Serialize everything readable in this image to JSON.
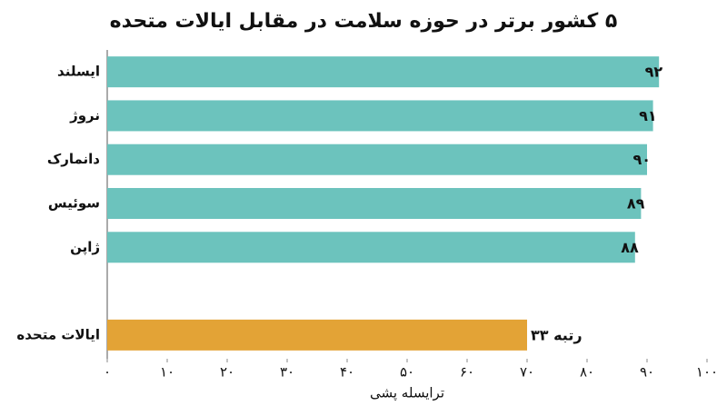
{
  "chart_data": {
    "type": "barh",
    "title": "۵ کشور برتر در حوزه سلامت در مقابل ایالات متحده",
    "x_label": "ترایسله پشی",
    "categories": [
      "ایسلند",
      "نروژ",
      "دانمارک",
      "سوئیس",
      "ژاپن",
      null,
      "ایالات متحده"
    ],
    "values": [
      92,
      91,
      90,
      89,
      88,
      null,
      70
    ],
    "value_labels": [
      "۹۲",
      "۹۱",
      "۹۰",
      "۸۹",
      "۸۸",
      null,
      null
    ],
    "colors": [
      "#6cc3bd",
      "#6cc3bd",
      "#6cc3bd",
      "#6cc3bd",
      "#6cc3bd",
      null,
      "#e3a336"
    ],
    "annotation": "رتبه ۳۳",
    "xlim": [
      0,
      100
    ],
    "xticks": [
      {
        "value": 0,
        "label": "۰"
      },
      {
        "value": 10,
        "label": "۱۰"
      },
      {
        "value": 20,
        "label": "۲۰"
      },
      {
        "value": 30,
        "label": "۳۰"
      },
      {
        "value": 40,
        "label": "۴۰"
      },
      {
        "value": 50,
        "label": "۵۰"
      },
      {
        "value": 60,
        "label": "۶۰"
      },
      {
        "value": 70,
        "label": "۷۰"
      },
      {
        "value": 80,
        "label": "۸۰"
      },
      {
        "value": 90,
        "label": "۹۰"
      },
      {
        "value": 100,
        "label": "۱۰۰"
      }
    ],
    "grid": false
  }
}
